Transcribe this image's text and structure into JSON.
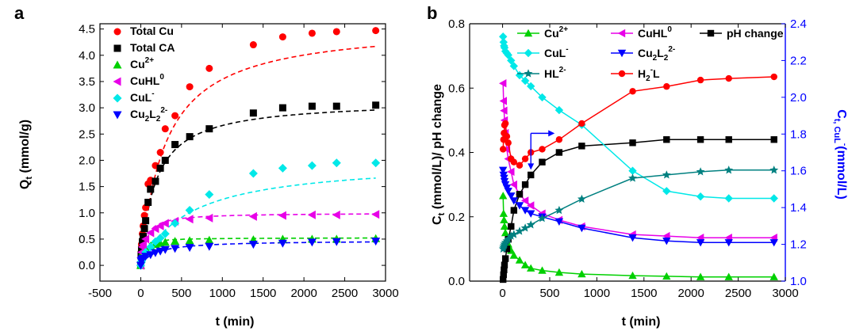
{
  "chart_data": [
    {
      "type": "scatter",
      "panel_label": "a",
      "xlabel_main": "t",
      "xlabel_rest": " (min)",
      "ylabel_main": "Q",
      "ylabel_sub": "t",
      "ylabel_rest": " (mmol/g)",
      "xlim": [
        -500,
        3000
      ],
      "ylim": [
        -0.3,
        4.6
      ],
      "xticks": [
        -500,
        0,
        500,
        1000,
        1500,
        2000,
        2500,
        3000
      ],
      "yticks": [
        0.0,
        0.5,
        1.0,
        1.5,
        2.0,
        2.5,
        3.0,
        3.5,
        4.0,
        4.5
      ],
      "legend_position": "top-left",
      "series": [
        {
          "name": "Total Cu",
          "name_main": "Total Cu",
          "name_sub": "",
          "name_sup": "",
          "color": "#ff0000",
          "marker": "circle",
          "x": [
            0,
            5,
            10,
            20,
            30,
            45,
            60,
            90,
            120,
            180,
            240,
            300,
            420,
            600,
            840,
            1380,
            1740,
            2100,
            2400,
            2880
          ],
          "y": [
            0,
            0.25,
            0.4,
            0.6,
            0.75,
            0.95,
            1.1,
            1.55,
            1.62,
            1.9,
            2.15,
            2.6,
            2.85,
            3.4,
            3.75,
            4.2,
            4.35,
            4.42,
            4.45,
            4.47
          ]
        },
        {
          "name": "Total CA",
          "name_main": "Total CA",
          "name_sub": "",
          "name_sup": "",
          "color": "#000000",
          "marker": "square",
          "x": [
            0,
            5,
            10,
            20,
            30,
            45,
            60,
            90,
            120,
            180,
            240,
            300,
            420,
            600,
            840,
            1380,
            1740,
            2100,
            2400,
            2880
          ],
          "y": [
            0,
            0.2,
            0.3,
            0.45,
            0.55,
            0.7,
            0.85,
            1.2,
            1.45,
            1.6,
            1.85,
            2.0,
            2.3,
            2.45,
            2.6,
            2.9,
            3.0,
            3.03,
            3.03,
            3.05
          ]
        },
        {
          "name": "Cu2+",
          "name_main": "Cu",
          "name_sub": "",
          "name_sup": "2+",
          "color": "#00d000",
          "marker": "triangle-up",
          "x": [
            0,
            5,
            10,
            20,
            30,
            60,
            120,
            180,
            240,
            300,
            420,
            600,
            840,
            1380,
            1740,
            2100,
            2400,
            2880
          ],
          "y": [
            0,
            0.12,
            0.18,
            0.22,
            0.27,
            0.32,
            0.37,
            0.4,
            0.42,
            0.44,
            0.46,
            0.47,
            0.48,
            0.49,
            0.5,
            0.5,
            0.5,
            0.51
          ]
        },
        {
          "name": "CuHL0",
          "name_main": "CuHL",
          "name_sub": "",
          "name_sup": "0",
          "color": "#e800e8",
          "marker": "triangle-left",
          "x": [
            0,
            5,
            10,
            20,
            30,
            60,
            120,
            180,
            240,
            300,
            420,
            600,
            840,
            1380,
            1740,
            2100,
            2400,
            2880
          ],
          "y": [
            0,
            0.15,
            0.25,
            0.35,
            0.4,
            0.5,
            0.62,
            0.7,
            0.75,
            0.8,
            0.84,
            0.88,
            0.9,
            0.93,
            0.95,
            0.96,
            0.96,
            0.97
          ]
        },
        {
          "name": "CuL-",
          "name_main": "CuL",
          "name_sub": "",
          "name_sup": "-",
          "color": "#00e8e8",
          "marker": "diamond",
          "x": [
            0,
            5,
            10,
            20,
            30,
            60,
            120,
            180,
            240,
            300,
            420,
            600,
            840,
            1380,
            1740,
            2100,
            2400,
            2880
          ],
          "y": [
            0,
            0.05,
            0.08,
            0.12,
            0.15,
            0.25,
            0.35,
            0.45,
            0.52,
            0.6,
            0.8,
            1.05,
            1.35,
            1.75,
            1.85,
            1.9,
            1.95,
            1.95
          ]
        },
        {
          "name": "Cu2L22-",
          "name_main": "Cu",
          "name_sub": "2",
          "name_mid": "L",
          "name_sub2": "2",
          "name_sup": "2-",
          "color": "#0000ff",
          "marker": "triangle-down",
          "x": [
            0,
            5,
            10,
            20,
            30,
            60,
            120,
            180,
            240,
            300,
            420,
            600,
            840,
            1380,
            1740,
            2100,
            2400,
            2880
          ],
          "y": [
            0,
            0.08,
            0.1,
            0.12,
            0.13,
            0.17,
            0.2,
            0.24,
            0.27,
            0.3,
            0.32,
            0.34,
            0.36,
            0.4,
            0.42,
            0.44,
            0.45,
            0.46
          ]
        }
      ]
    },
    {
      "type": "line",
      "panel_label": "b",
      "xlabel_main": "t",
      "xlabel_rest": " (min)",
      "ylabel_left_main": "C",
      "ylabel_left_sub": "t",
      "ylabel_left_rest": " (mmol/L)/ pH change",
      "ylabel_right_main": "C",
      "ylabel_right_sub": "t, CuL",
      "ylabel_right_sup": "-",
      "ylabel_right_rest": "(mmol/L)",
      "xlim": [
        -350,
        3000
      ],
      "ylim_left": [
        0.0,
        0.8
      ],
      "ylim_right": [
        1.0,
        2.4
      ],
      "xticks": [
        0,
        500,
        1000,
        1500,
        2000,
        2500,
        3000
      ],
      "yticks_left": [
        0.0,
        0.2,
        0.4,
        0.6,
        0.8
      ],
      "yticks_right": [
        1.0,
        1.2,
        1.4,
        1.6,
        1.8,
        2.0,
        2.2,
        2.4
      ],
      "right_axis_color": "#0000ff",
      "legend_position": "top-center",
      "series": [
        {
          "name": "Cu2+",
          "name_main": "Cu",
          "name_sub": "",
          "name_sup": "2+",
          "color": "#00d000",
          "marker": "triangle-up",
          "axis": "left",
          "x": [
            5,
            10,
            15,
            20,
            30,
            45,
            60,
            90,
            120,
            180,
            240,
            300,
            420,
            600,
            840,
            1380,
            1740,
            2100,
            2400,
            2880
          ],
          "y": [
            0.265,
            0.21,
            0.19,
            0.17,
            0.15,
            0.13,
            0.115,
            0.095,
            0.08,
            0.065,
            0.05,
            0.04,
            0.033,
            0.027,
            0.022,
            0.017,
            0.015,
            0.013,
            0.013,
            0.013
          ]
        },
        {
          "name": "CuHL0",
          "name_main": "CuHL",
          "name_sub": "",
          "name_sup": "0",
          "color": "#e800e8",
          "marker": "triangle-left",
          "axis": "left",
          "x": [
            5,
            10,
            15,
            20,
            30,
            45,
            60,
            90,
            120,
            180,
            240,
            300,
            420,
            600,
            840,
            1380,
            1740,
            2100,
            2400,
            2880
          ],
          "y": [
            0.615,
            0.56,
            0.53,
            0.5,
            0.46,
            0.41,
            0.38,
            0.34,
            0.3,
            0.27,
            0.25,
            0.235,
            0.21,
            0.19,
            0.17,
            0.145,
            0.14,
            0.135,
            0.135,
            0.135
          ]
        },
        {
          "name": "pH change",
          "name_main": "pH change",
          "name_sub": "",
          "name_sup": "",
          "color": "#000000",
          "marker": "square",
          "axis": "left",
          "x": [
            5,
            10,
            15,
            20,
            30,
            45,
            60,
            90,
            120,
            180,
            240,
            300,
            420,
            600,
            840,
            1380,
            1740,
            2100,
            2400,
            2880
          ],
          "y": [
            0.005,
            0.02,
            0.035,
            0.05,
            0.07,
            0.1,
            0.13,
            0.17,
            0.22,
            0.27,
            0.3,
            0.33,
            0.37,
            0.4,
            0.42,
            0.43,
            0.44,
            0.44,
            0.44,
            0.44
          ]
        },
        {
          "name": "CuL-",
          "name_main": "CuL",
          "name_sub": "",
          "name_sup": "-",
          "color": "#00e8e8",
          "marker": "diamond",
          "axis": "right",
          "x": [
            5,
            10,
            15,
            20,
            30,
            45,
            60,
            90,
            120,
            180,
            240,
            300,
            420,
            600,
            840,
            1380,
            1740,
            2100,
            2400,
            2880
          ],
          "y": [
            2.33,
            2.3,
            2.28,
            2.27,
            2.25,
            2.24,
            2.23,
            2.2,
            2.17,
            2.12,
            2.09,
            2.06,
            2.0,
            1.93,
            1.85,
            1.6,
            1.49,
            1.46,
            1.45,
            1.45
          ]
        },
        {
          "name": "Cu2L22-",
          "name_main": "Cu",
          "name_sub": "2",
          "name_mid": "L",
          "name_sub2": "2",
          "name_sup": "2-",
          "color": "#0000ff",
          "marker": "triangle-down",
          "axis": "left",
          "x": [
            5,
            10,
            15,
            20,
            30,
            45,
            60,
            90,
            120,
            180,
            240,
            300,
            420,
            600,
            840,
            1380,
            1740,
            2100,
            2400,
            2880
          ],
          "y": [
            0.345,
            0.33,
            0.32,
            0.31,
            0.3,
            0.29,
            0.28,
            0.265,
            0.25,
            0.235,
            0.22,
            0.21,
            0.2,
            0.185,
            0.165,
            0.135,
            0.125,
            0.12,
            0.12,
            0.12
          ]
        },
        {
          "name": "HL2-",
          "name_main": "HL",
          "name_sub": "",
          "name_sup": "2-",
          "color": "#008080",
          "marker": "star",
          "axis": "left",
          "x": [
            5,
            10,
            15,
            20,
            30,
            45,
            60,
            90,
            120,
            180,
            240,
            300,
            420,
            600,
            840,
            1380,
            1740,
            2100,
            2400,
            2880
          ],
          "y": [
            0.1,
            0.105,
            0.11,
            0.115,
            0.12,
            0.125,
            0.13,
            0.14,
            0.145,
            0.155,
            0.165,
            0.175,
            0.195,
            0.22,
            0.255,
            0.32,
            0.33,
            0.34,
            0.345,
            0.345
          ]
        },
        {
          "name": "H2L-",
          "name_main": "H",
          "name_sub": "2",
          "name_sup": "-",
          "name_tail": "L",
          "color": "#ff0000",
          "marker": "circle",
          "axis": "left",
          "x": [
            5,
            10,
            15,
            20,
            30,
            45,
            60,
            90,
            120,
            180,
            240,
            300,
            420,
            600,
            840,
            1380,
            1740,
            2100,
            2400,
            2880
          ],
          "y": [
            0.41,
            0.44,
            0.46,
            0.485,
            0.49,
            0.45,
            0.43,
            0.38,
            0.37,
            0.36,
            0.38,
            0.4,
            0.41,
            0.44,
            0.49,
            0.59,
            0.605,
            0.625,
            0.63,
            0.635
          ]
        }
      ]
    }
  ]
}
